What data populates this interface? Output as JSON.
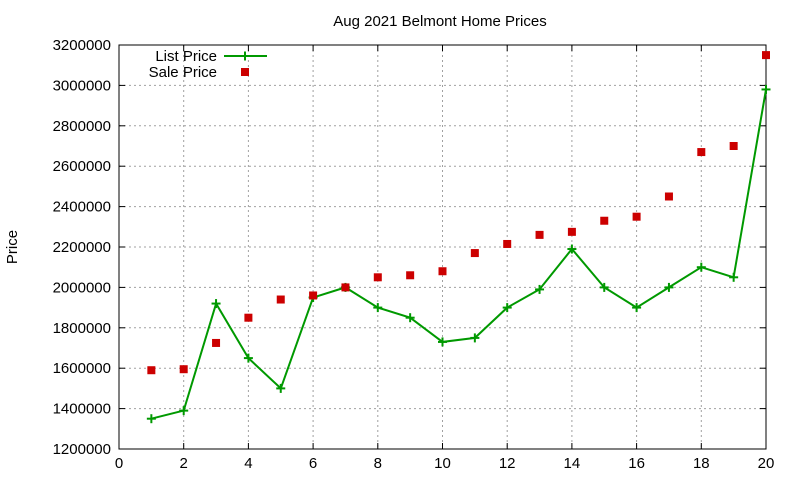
{
  "chart_data": {
    "type": "line",
    "title": "Aug 2021 Belmont Home Prices",
    "xlabel": "",
    "ylabel": "Price",
    "xlim": [
      0,
      20
    ],
    "ylim": [
      1200000,
      3200000
    ],
    "xticks": [
      0,
      2,
      4,
      6,
      8,
      10,
      12,
      14,
      16,
      18,
      20
    ],
    "yticks": [
      1200000,
      1400000,
      1600000,
      1800000,
      2000000,
      2200000,
      2400000,
      2600000,
      2800000,
      3000000,
      3200000
    ],
    "grid": true,
    "legend_position": "top-left",
    "series": [
      {
        "name": "List Price",
        "style": "line-with-plus-markers",
        "color": "#009900",
        "x": [
          1,
          2,
          3,
          4,
          5,
          6,
          7,
          8,
          9,
          10,
          11,
          12,
          13,
          14,
          15,
          16,
          17,
          18,
          19,
          20
        ],
        "y": [
          1350000,
          1390000,
          1920000,
          1650000,
          1500000,
          1950000,
          2000000,
          1900000,
          1850000,
          1730000,
          1750000,
          1900000,
          1990000,
          2190000,
          2000000,
          1900000,
          2000000,
          2100000,
          2050000,
          2980000
        ]
      },
      {
        "name": "Sale Price",
        "style": "square-markers",
        "color": "#cc0000",
        "x": [
          1,
          2,
          3,
          4,
          5,
          6,
          7,
          8,
          9,
          10,
          11,
          12,
          13,
          14,
          15,
          16,
          17,
          18,
          19,
          20
        ],
        "y": [
          1590000,
          1595000,
          1725000,
          1850000,
          1940000,
          1960000,
          2000000,
          2050000,
          2060000,
          2080000,
          2170000,
          2215000,
          2260000,
          2275000,
          2330000,
          2350000,
          2450000,
          2670000,
          2700000,
          3150000
        ]
      }
    ]
  }
}
